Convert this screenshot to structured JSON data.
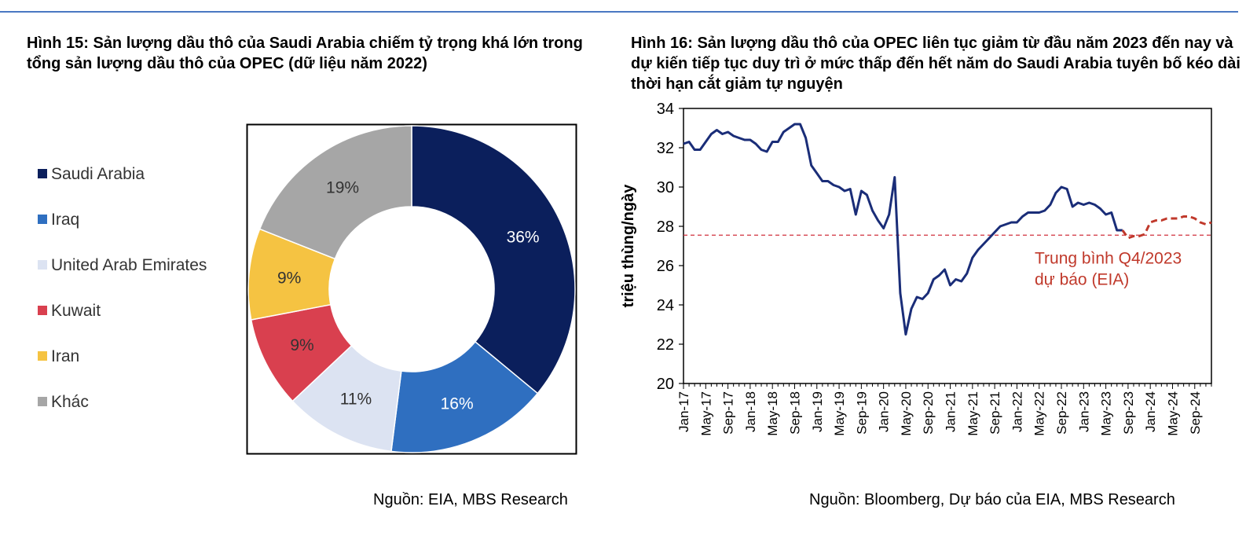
{
  "figure15": {
    "title": "Hình 15: Sản lượng dầu thô của Saudi Arabia chiếm tỷ trọng khá lớn trong tổng sản lượng dầu thô của OPEC (dữ liệu năm 2022)",
    "source": "Nguồn: EIA, MBS Research"
  },
  "figure16": {
    "title": "Hình 16: Sản lượng dầu thô của OPEC liên tục giảm từ đầu năm 2023 đến nay và dự kiến tiếp tục duy trì ở mức thấp đến hết năm do Saudi Arabia tuyên bố kéo dài thời hạn cắt giảm tự nguyện",
    "source": "Nguồn: Bloomberg, Dự báo của EIA, MBS Research"
  },
  "chart_data": [
    {
      "type": "pie",
      "donut": true,
      "legend_position": "left",
      "categories": [
        "Saudi Arabia",
        "Iraq",
        "United Arab Emirates",
        "Kuwait",
        "Iran",
        "Khác"
      ],
      "values": [
        36,
        16,
        11,
        9,
        9,
        19
      ],
      "labels": [
        "36%",
        "16%",
        "11%",
        "9%",
        "9%",
        "19%"
      ],
      "colors": [
        "#0b1f5c",
        "#2f6fc0",
        "#dce3f2",
        "#d9404f",
        "#f5c342",
        "#a6a6a6"
      ],
      "label_colors": [
        "#ffffff",
        "#ffffff",
        "#333333",
        "#333333",
        "#333333",
        "#333333"
      ]
    },
    {
      "type": "line",
      "ylabel": "triệu thùng/ngày",
      "xlabel": "",
      "ylim": [
        20,
        34
      ],
      "yticks": [
        20,
        22,
        24,
        26,
        28,
        30,
        32,
        34
      ],
      "xlim": [
        "2017-01",
        "2024-12"
      ],
      "xtick_labels": [
        "Jan-17",
        "May-17",
        "Sep-17",
        "Jan-18",
        "May-18",
        "Sep-18",
        "Jan-19",
        "May-19",
        "Sep-19",
        "Jan-20",
        "May-20",
        "Sep-20",
        "Jan-21",
        "May-21",
        "Sep-21",
        "Jan-22",
        "May-22",
        "Sep-22",
        "Jan-23",
        "May-23",
        "Sep-23",
        "Jan-24",
        "May-24",
        "Sep-24"
      ],
      "grid": false,
      "series": [
        {
          "style": "solid",
          "color": "#1a2d78",
          "x": [
            "2017-01",
            "2017-02",
            "2017-03",
            "2017-04",
            "2017-05",
            "2017-06",
            "2017-07",
            "2017-08",
            "2017-09",
            "2017-10",
            "2017-11",
            "2017-12",
            "2018-01",
            "2018-02",
            "2018-03",
            "2018-04",
            "2018-05",
            "2018-06",
            "2018-07",
            "2018-08",
            "2018-09",
            "2018-10",
            "2018-11",
            "2018-12",
            "2019-01",
            "2019-02",
            "2019-03",
            "2019-04",
            "2019-05",
            "2019-06",
            "2019-07",
            "2019-08",
            "2019-09",
            "2019-10",
            "2019-11",
            "2019-12",
            "2020-01",
            "2020-02",
            "2020-03",
            "2020-04",
            "2020-05",
            "2020-06",
            "2020-07",
            "2020-08",
            "2020-09",
            "2020-10",
            "2020-11",
            "2020-12",
            "2021-01",
            "2021-02",
            "2021-03",
            "2021-04",
            "2021-05",
            "2021-06",
            "2021-07",
            "2021-08",
            "2021-09",
            "2021-10",
            "2021-11",
            "2021-12",
            "2022-01",
            "2022-02",
            "2022-03",
            "2022-04",
            "2022-05",
            "2022-06",
            "2022-07",
            "2022-08",
            "2022-09",
            "2022-10",
            "2022-11",
            "2022-12",
            "2023-01",
            "2023-02",
            "2023-03",
            "2023-04",
            "2023-05",
            "2023-06",
            "2023-07",
            "2023-08"
          ],
          "y": [
            32.2,
            32.3,
            31.9,
            31.9,
            32.3,
            32.7,
            32.9,
            32.7,
            32.8,
            32.6,
            32.5,
            32.4,
            32.4,
            32.2,
            31.9,
            31.8,
            32.3,
            32.3,
            32.8,
            33.0,
            33.2,
            33.2,
            32.5,
            31.1,
            30.7,
            30.3,
            30.3,
            30.1,
            30.0,
            29.8,
            29.9,
            28.6,
            29.8,
            29.6,
            28.8,
            28.3,
            27.9,
            28.6,
            30.5,
            24.6,
            22.5,
            23.8,
            24.4,
            24.3,
            24.6,
            25.3,
            25.5,
            25.8,
            25.0,
            25.3,
            25.2,
            25.6,
            26.4,
            26.8,
            27.1,
            27.4,
            27.7,
            28.0,
            28.1,
            28.2,
            28.2,
            28.5,
            28.7,
            28.7,
            28.7,
            28.8,
            29.1,
            29.7,
            30.0,
            29.9,
            29.0,
            29.2,
            29.1,
            29.2,
            29.1,
            28.9,
            28.6,
            28.7,
            27.8,
            27.8
          ]
        },
        {
          "style": "dashed",
          "color": "#c0392b",
          "x": [
            "2023-08",
            "2023-09",
            "2023-10",
            "2023-11",
            "2023-12",
            "2024-01",
            "2024-02",
            "2024-03",
            "2024-04",
            "2024-05",
            "2024-06",
            "2024-07",
            "2024-08",
            "2024-09",
            "2024-10",
            "2024-11",
            "2024-12"
          ],
          "y": [
            27.8,
            27.4,
            27.5,
            27.5,
            27.6,
            28.2,
            28.3,
            28.3,
            28.4,
            28.4,
            28.4,
            28.5,
            28.5,
            28.4,
            28.2,
            28.1,
            28.2
          ]
        }
      ],
      "reference_line": {
        "y": 27.55,
        "style": "dashed",
        "color": "#d0313d",
        "annotation": "Trung bình Q4/2023\ndự báo (EIA)"
      }
    }
  ]
}
